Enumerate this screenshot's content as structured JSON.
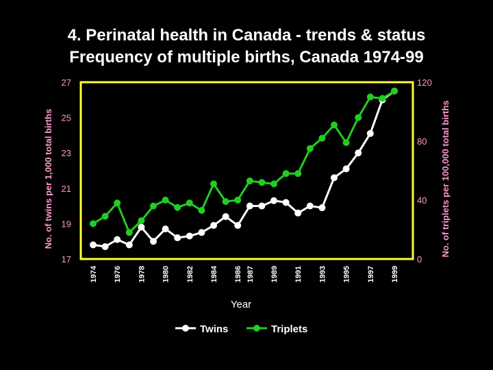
{
  "title_line1": "4. Perinatal health in Canada - trends & status",
  "title_line2": "Frequency of multiple births, Canada 1974-99",
  "colors": {
    "frame": "#ffff33",
    "twins": "#ffffff",
    "triplets": "#22cc22",
    "axis_text": "#ff99cc"
  },
  "chart_data": {
    "type": "line",
    "xlabel": "Year",
    "ylabel_left": "No. of twins per 1,000 total births",
    "ylabel_right": "No. of triplets per 100,000 total births",
    "x": [
      1974,
      1975,
      1976,
      1977,
      1978,
      1979,
      1980,
      1981,
      1982,
      1983,
      1984,
      1985,
      1986,
      1987,
      1988,
      1989,
      1990,
      1991,
      1992,
      1993,
      1994,
      1995,
      1996,
      1997,
      1998,
      1999
    ],
    "xtick_labels": [
      "1974",
      "1976",
      "1978",
      "1980",
      "1982",
      "1984",
      "1986",
      "1987",
      "1989",
      "1991",
      "1993",
      "1995",
      "1997",
      "1999"
    ],
    "xtick_positions": [
      1974,
      1976,
      1978,
      1980,
      1982,
      1984,
      1986,
      1987,
      1989,
      1991,
      1993,
      1995,
      1997,
      1999
    ],
    "ylim_left": [
      17,
      27
    ],
    "yticks_left": [
      17,
      19,
      21,
      23,
      25,
      27
    ],
    "ylim_right": [
      0,
      120
    ],
    "yticks_right": [
      0,
      40,
      80,
      120
    ],
    "legend_position": "bottom-center",
    "series": [
      {
        "name": "Twins",
        "axis": "left",
        "values": [
          17.8,
          17.7,
          18.1,
          17.8,
          18.8,
          18.0,
          18.7,
          18.2,
          18.3,
          18.5,
          18.9,
          19.4,
          18.9,
          20.0,
          20.0,
          20.3,
          20.2,
          19.6,
          20.0,
          19.9,
          21.6,
          22.1,
          23.0,
          24.1,
          26.0,
          26.5
        ]
      },
      {
        "name": "Triplets",
        "axis": "right",
        "values": [
          24,
          29,
          38,
          18,
          26,
          36,
          40,
          35,
          38,
          33,
          51,
          39,
          40,
          53,
          52,
          51,
          58,
          58,
          75,
          82,
          91,
          79,
          96,
          110,
          109,
          114
        ]
      }
    ]
  }
}
